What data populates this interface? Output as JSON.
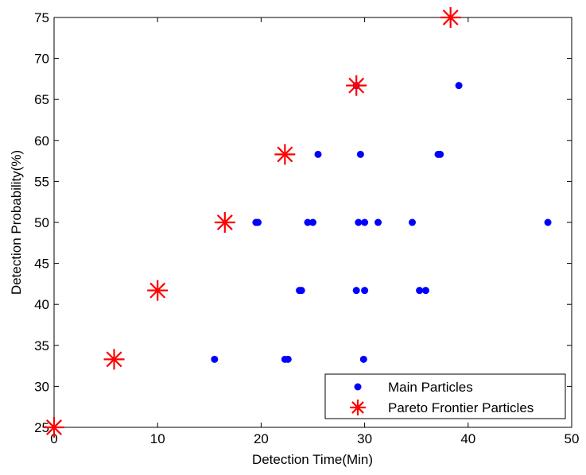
{
  "chart_data": {
    "type": "scatter",
    "xlabel": "Detection Time(Min)",
    "ylabel": "Detection Probability(%)",
    "xlim": [
      0,
      50
    ],
    "ylim": [
      25,
      75
    ],
    "xticks": [
      "0",
      "10",
      "20",
      "30",
      "40",
      "50"
    ],
    "yticks": [
      "25",
      "30",
      "35",
      "40",
      "45",
      "50",
      "55",
      "60",
      "65",
      "70",
      "75"
    ],
    "grid": false,
    "legend_position": "bottom-right",
    "series": [
      {
        "name": "Main Particles",
        "marker": "dot",
        "color": "#0000ff",
        "points": [
          {
            "x": 15.5,
            "y": 33.3
          },
          {
            "x": 22.3,
            "y": 33.3
          },
          {
            "x": 22.6,
            "y": 33.3
          },
          {
            "x": 29.9,
            "y": 33.3
          },
          {
            "x": 23.7,
            "y": 41.7
          },
          {
            "x": 23.9,
            "y": 41.7
          },
          {
            "x": 29.2,
            "y": 41.7
          },
          {
            "x": 30.0,
            "y": 41.7
          },
          {
            "x": 35.3,
            "y": 41.7
          },
          {
            "x": 35.9,
            "y": 41.7
          },
          {
            "x": 19.5,
            "y": 50
          },
          {
            "x": 19.7,
            "y": 50
          },
          {
            "x": 24.5,
            "y": 50
          },
          {
            "x": 25.0,
            "y": 50
          },
          {
            "x": 29.4,
            "y": 50
          },
          {
            "x": 30.0,
            "y": 50
          },
          {
            "x": 31.3,
            "y": 50
          },
          {
            "x": 34.6,
            "y": 50
          },
          {
            "x": 47.7,
            "y": 50
          },
          {
            "x": 25.5,
            "y": 58.3
          },
          {
            "x": 29.6,
            "y": 58.3
          },
          {
            "x": 37.1,
            "y": 58.3
          },
          {
            "x": 37.3,
            "y": 58.3
          },
          {
            "x": 29.2,
            "y": 66.7
          },
          {
            "x": 39.1,
            "y": 66.7
          }
        ]
      },
      {
        "name": "Pareto Frontier Particles",
        "marker": "asterisk",
        "color": "#ff0000",
        "points": [
          {
            "x": 0,
            "y": 25
          },
          {
            "x": 5.8,
            "y": 33.3
          },
          {
            "x": 10.0,
            "y": 41.7
          },
          {
            "x": 16.5,
            "y": 50
          },
          {
            "x": 22.3,
            "y": 58.3
          },
          {
            "x": 29.2,
            "y": 66.7
          },
          {
            "x": 38.3,
            "y": 75
          }
        ]
      }
    ]
  }
}
